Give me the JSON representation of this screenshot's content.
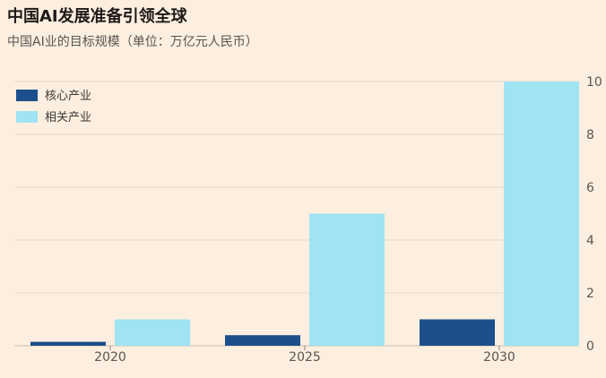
{
  "title": "中国AI发展准备引领全球",
  "subtitle": "中国AI业的目标规模（单位：万亿元人民币）",
  "chart_data": {
    "type": "bar",
    "categories": [
      "2020",
      "2025",
      "2030"
    ],
    "series": [
      {
        "name": "核心产业",
        "values": [
          0.15,
          0.4,
          1.0
        ],
        "color": "#1d4f8c"
      },
      {
        "name": "相关产业",
        "values": [
          1.0,
          5.0,
          10.0
        ],
        "color": "#a0e3f2"
      }
    ],
    "ylim": [
      0,
      10
    ],
    "yticks": [
      0,
      2,
      4,
      6,
      8,
      10
    ],
    "y_axis_side": "right",
    "grid": true,
    "legend_position": "top-left"
  }
}
